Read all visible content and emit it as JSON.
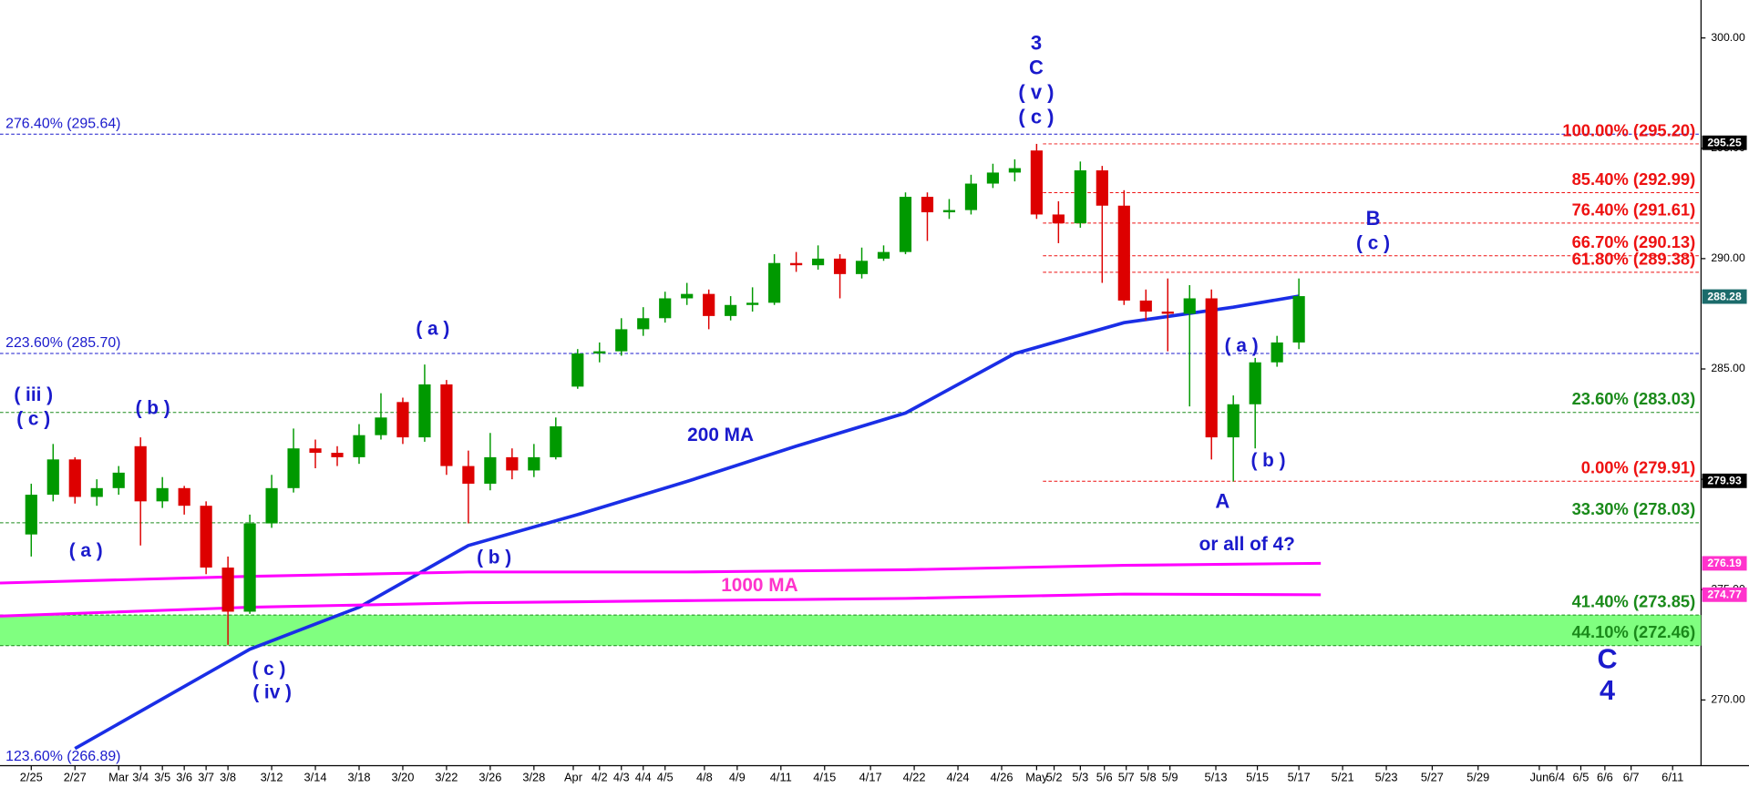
{
  "chart_data": {
    "type": "candlestick",
    "up_color": "#009900",
    "down_color": "#dd0000",
    "xlim": [
      -1.43,
      76.4
    ],
    "ylim": [
      267.02,
      301.72
    ],
    "yticks": [
      {
        "value": 270,
        "label": "270.00"
      },
      {
        "value": 275,
        "label": "275.00"
      },
      {
        "value": 280,
        "label": "280.00"
      },
      {
        "value": 285,
        "label": "285.00"
      },
      {
        "value": 290,
        "label": "290.00"
      },
      {
        "value": 295,
        "label": "295.00"
      },
      {
        "value": 300,
        "label": "300.00"
      }
    ],
    "xticks": [
      {
        "value": 0,
        "label": "2/25"
      },
      {
        "value": 2,
        "label": "2/27"
      },
      {
        "value": 4,
        "label": "Mar"
      },
      {
        "value": 5,
        "label": "3/4"
      },
      {
        "value": 6,
        "label": "3/5"
      },
      {
        "value": 7,
        "label": "3/6"
      },
      {
        "value": 8,
        "label": "3/7"
      },
      {
        "value": 9,
        "label": "3/8"
      },
      {
        "value": 11,
        "label": "3/12"
      },
      {
        "value": 13,
        "label": "3/14"
      },
      {
        "value": 15,
        "label": "3/18"
      },
      {
        "value": 17,
        "label": "3/20"
      },
      {
        "value": 19,
        "label": "3/22"
      },
      {
        "value": 21,
        "label": "3/26"
      },
      {
        "value": 23,
        "label": "3/28"
      },
      {
        "value": 24.8,
        "label": "Apr"
      },
      {
        "value": 26,
        "label": "4/2"
      },
      {
        "value": 27,
        "label": "4/3"
      },
      {
        "value": 28,
        "label": "4/4"
      },
      {
        "value": 29,
        "label": "4/5"
      },
      {
        "value": 30.8,
        "label": "4/8"
      },
      {
        "value": 32.3,
        "label": "4/9"
      },
      {
        "value": 34.3,
        "label": "4/11"
      },
      {
        "value": 36.3,
        "label": "4/15"
      },
      {
        "value": 38.4,
        "label": "4/17"
      },
      {
        "value": 40.4,
        "label": "4/22"
      },
      {
        "value": 42.4,
        "label": "4/24"
      },
      {
        "value": 44.4,
        "label": "4/26"
      },
      {
        "value": 46,
        "label": "May"
      },
      {
        "value": 46.8,
        "label": "5/2"
      },
      {
        "value": 48,
        "label": "5/3"
      },
      {
        "value": 49.1,
        "label": "5/6"
      },
      {
        "value": 50.1,
        "label": "5/7"
      },
      {
        "value": 51.1,
        "label": "5/8"
      },
      {
        "value": 52.1,
        "label": "5/9"
      },
      {
        "value": 54.2,
        "label": "5/13"
      },
      {
        "value": 56.1,
        "label": "5/15"
      },
      {
        "value": 58,
        "label": "5/17"
      },
      {
        "value": 60,
        "label": "5/21"
      },
      {
        "value": 62,
        "label": "5/23"
      },
      {
        "value": 64.1,
        "label": "5/27"
      },
      {
        "value": 66.2,
        "label": "5/29"
      },
      {
        "value": 69,
        "label": "Jun"
      },
      {
        "value": 69.8,
        "label": "6/4"
      },
      {
        "value": 70.9,
        "label": "6/5"
      },
      {
        "value": 72,
        "label": "6/6"
      },
      {
        "value": 73.2,
        "label": "6/7"
      },
      {
        "value": 75.1,
        "label": "6/11"
      }
    ],
    "x": [
      0,
      1,
      2,
      3,
      4,
      5,
      6,
      7,
      8,
      9,
      10,
      11,
      12,
      13,
      14,
      15,
      16,
      17,
      18,
      19,
      20,
      21,
      22,
      23,
      24,
      25,
      26,
      27,
      28,
      29,
      30,
      31,
      32,
      33,
      34,
      35,
      36,
      37,
      38,
      39,
      40,
      41,
      42,
      43,
      44,
      45,
      46,
      47,
      48,
      49,
      50,
      51,
      52,
      53,
      54,
      55,
      56,
      57,
      58
    ],
    "open": [
      277.5,
      279.3,
      280.9,
      279.2,
      279.6,
      281.5,
      279.0,
      279.6,
      278.8,
      276.0,
      274.0,
      278.0,
      279.6,
      281.4,
      281.2,
      281.0,
      282.0,
      283.5,
      281.9,
      284.3,
      280.6,
      279.8,
      281.0,
      280.4,
      281.0,
      284.2,
      285.7,
      285.8,
      286.8,
      287.3,
      288.2,
      288.4,
      287.4,
      287.9,
      288.0,
      289.8,
      289.7,
      290.0,
      289.3,
      290.0,
      290.3,
      292.8,
      292.1,
      292.2,
      293.4,
      293.9,
      294.9,
      292.0,
      291.6,
      294.0,
      292.4,
      288.1,
      287.6,
      287.5,
      288.2,
      281.9,
      283.4,
      285.3,
      286.2
    ],
    "high": [
      279.8,
      281.6,
      281.0,
      280.0,
      280.6,
      281.9,
      280.1,
      279.7,
      279.0,
      276.5,
      278.4,
      280.2,
      282.3,
      281.8,
      281.5,
      282.5,
      283.9,
      283.7,
      285.2,
      284.5,
      281.3,
      282.1,
      281.4,
      281.6,
      282.8,
      285.9,
      286.2,
      287.3,
      287.8,
      288.5,
      288.9,
      288.6,
      288.3,
      288.7,
      290.2,
      290.3,
      290.6,
      290.2,
      290.5,
      290.6,
      293.0,
      293.0,
      292.7,
      293.8,
      294.3,
      294.5,
      295.2,
      292.6,
      294.4,
      294.2,
      293.1,
      288.6,
      289.1,
      288.8,
      288.6,
      283.8,
      285.5,
      286.5,
      289.1
    ],
    "low": [
      276.5,
      279.0,
      278.9,
      278.8,
      279.3,
      277.0,
      278.7,
      278.4,
      275.7,
      272.5,
      273.9,
      277.8,
      279.4,
      280.5,
      280.6,
      280.7,
      281.8,
      281.6,
      281.7,
      280.2,
      278.0,
      279.5,
      280.0,
      280.1,
      280.9,
      284.1,
      285.3,
      285.6,
      286.5,
      287.1,
      287.9,
      286.8,
      287.2,
      287.6,
      287.9,
      289.4,
      289.5,
      288.2,
      289.1,
      289.9,
      290.2,
      290.8,
      291.8,
      292.0,
      293.2,
      293.5,
      291.8,
      290.7,
      291.4,
      288.9,
      287.9,
      287.2,
      285.8,
      283.3,
      280.9,
      279.9,
      281.4,
      285.1,
      285.9
    ],
    "close": [
      279.3,
      280.9,
      279.2,
      279.6,
      280.3,
      279.0,
      279.6,
      278.8,
      276.0,
      274.0,
      278.0,
      279.6,
      281.4,
      281.2,
      281.0,
      282.0,
      282.8,
      281.9,
      284.3,
      280.6,
      279.8,
      281.0,
      280.4,
      281.0,
      282.4,
      285.7,
      285.8,
      286.8,
      287.3,
      288.2,
      288.4,
      287.4,
      287.9,
      288.0,
      289.8,
      289.7,
      290.0,
      289.3,
      289.9,
      290.3,
      292.8,
      292.1,
      292.2,
      293.4,
      293.9,
      294.1,
      292.0,
      291.6,
      294.0,
      292.4,
      288.1,
      287.6,
      287.5,
      288.2,
      281.9,
      283.4,
      285.3,
      286.2,
      288.3
    ],
    "lines": [
      {
        "name": "200 MA",
        "color": "#1a2ee6",
        "x": [
          2,
          10,
          15,
          20,
          25,
          30,
          35,
          40,
          45,
          50,
          55,
          58
        ],
        "values": [
          267.8,
          272.3,
          274.2,
          277.0,
          278.4,
          279.9,
          281.5,
          283.0,
          285.7,
          287.1,
          287.8,
          288.3
        ]
      },
      {
        "name": "1000 MA",
        "color": "#ff00ff",
        "x": [
          -1.43,
          10,
          20,
          30,
          40,
          50,
          59
        ],
        "values": [
          275.3,
          275.6,
          275.8,
          275.8,
          275.9,
          276.1,
          276.19
        ]
      },
      {
        "color": "#ff00ff",
        "x": [
          -1.43,
          10,
          20,
          30,
          40,
          50,
          59
        ],
        "values": [
          273.8,
          274.2,
          274.4,
          274.5,
          274.6,
          274.8,
          274.77
        ]
      }
    ],
    "zone": {
      "from": 273.85,
      "to": 272.46,
      "color": "#80ff80"
    },
    "levels": [
      {
        "label": "276.40% (295.64)",
        "value": 295.64,
        "color": "#1a1acc"
      },
      {
        "label": "223.60% (285.70)",
        "value": 285.7,
        "color": "#1a1acc"
      },
      {
        "label": "123.60% (266.89)",
        "value": 266.89,
        "color": "#1a1acc"
      },
      {
        "label": "100.00% (295.20)",
        "value": 295.2,
        "color": "#ee1111"
      },
      {
        "label": "85.40% (292.99)",
        "value": 292.99,
        "color": "#ee1111"
      },
      {
        "label": "76.40% (291.61)",
        "value": 291.61,
        "color": "#ee1111"
      },
      {
        "label": "66.70% (290.13)",
        "value": 290.13,
        "color": "#ee1111"
      },
      {
        "label": "61.80% (289.38)",
        "value": 289.38,
        "color": "#ee1111"
      },
      {
        "label": "0.00% (279.91)",
        "value": 279.91,
        "color": "#ee1111"
      },
      {
        "label": "23.60% (283.03)",
        "value": 283.03,
        "color": "#1a8a1a"
      },
      {
        "label": "33.30% (278.03)",
        "value": 278.03,
        "color": "#1a8a1a"
      },
      {
        "label": "41.40% (273.85)",
        "value": 273.85,
        "color": "#1a8a1a"
      },
      {
        "label": "44.10% (272.46)",
        "value": 272.46,
        "color": "#1a8a1a"
      }
    ],
    "price_tags": [
      {
        "value": 295.25,
        "color": "#000000"
      },
      {
        "value": 288.28,
        "color": "#1b6b6b"
      },
      {
        "value": 279.93,
        "color": "#000000"
      },
      {
        "value": 276.19,
        "color": "#ff33cc"
      },
      {
        "value": 274.77,
        "color": "#ff33cc"
      }
    ],
    "annotations": [
      "3",
      "C",
      "( v )",
      "( c )",
      "( iii )",
      "( c )",
      "( b )",
      "( a )",
      "( a )",
      "( b )",
      "( c )",
      "( iv )",
      "( a )",
      "( b )",
      "A",
      "B",
      "( c )",
      "or all of 4?",
      "C",
      "4"
    ]
  }
}
